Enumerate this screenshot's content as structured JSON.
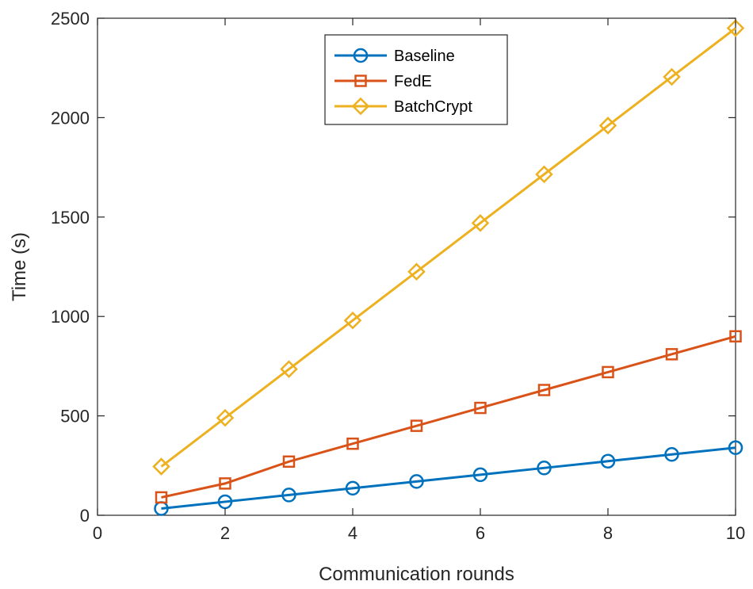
{
  "chart_data": {
    "type": "line",
    "xlabel": "Communication rounds",
    "ylabel": "Time (s)",
    "xlim": [
      0,
      10
    ],
    "ylim": [
      0,
      2500
    ],
    "xticks": [
      0,
      2,
      4,
      6,
      8,
      10
    ],
    "yticks": [
      0,
      500,
      1000,
      1500,
      2000,
      2500
    ],
    "grid": false,
    "legend_position": "top-center",
    "x": [
      1,
      2,
      3,
      4,
      5,
      6,
      7,
      8,
      9,
      10
    ],
    "series": [
      {
        "name": "Baseline",
        "color": "#0072BD",
        "marker": "circle",
        "values": [
          34,
          68,
          102,
          136,
          170,
          204,
          238,
          272,
          306,
          340
        ]
      },
      {
        "name": "FedE",
        "color": "#D95319",
        "marker": "square",
        "values": [
          90,
          160,
          270,
          360,
          450,
          540,
          630,
          720,
          810,
          900
        ]
      },
      {
        "name": "BatchCrypt",
        "color": "#EDB120",
        "marker": "diamond",
        "values": [
          245,
          490,
          735,
          980,
          1225,
          1470,
          1715,
          1960,
          2205,
          2450
        ]
      }
    ]
  }
}
